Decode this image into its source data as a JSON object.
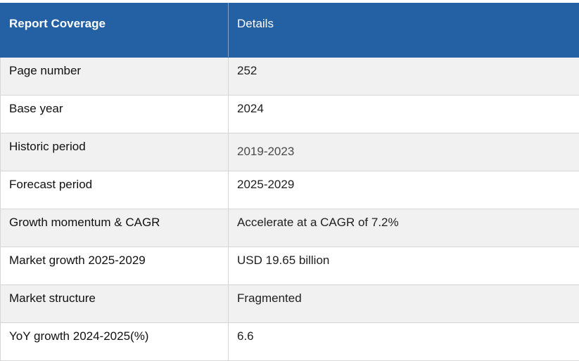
{
  "header": {
    "col1": "Report Coverage",
    "col2": "Details"
  },
  "rows": [
    {
      "label": "Page number",
      "value": "252"
    },
    {
      "label": "Base year",
      "value": "2024"
    },
    {
      "label": "Historic period",
      "value": "2019-2023"
    },
    {
      "label": "Forecast period",
      "value": "2025-2029"
    },
    {
      "label": "Growth momentum & CAGR",
      "value": "Accelerate at a CAGR of 7.2%"
    },
    {
      "label": "Market growth 2025-2029",
      "value": "USD 19.65 billion"
    },
    {
      "label": "Market structure",
      "value": "Fragmented"
    },
    {
      "label": "YoY growth 2024-2025(%)",
      "value": "6.6"
    }
  ],
  "colors": {
    "header_bg": "#2360a4",
    "row_alt_bg": "#f1f1f1"
  }
}
